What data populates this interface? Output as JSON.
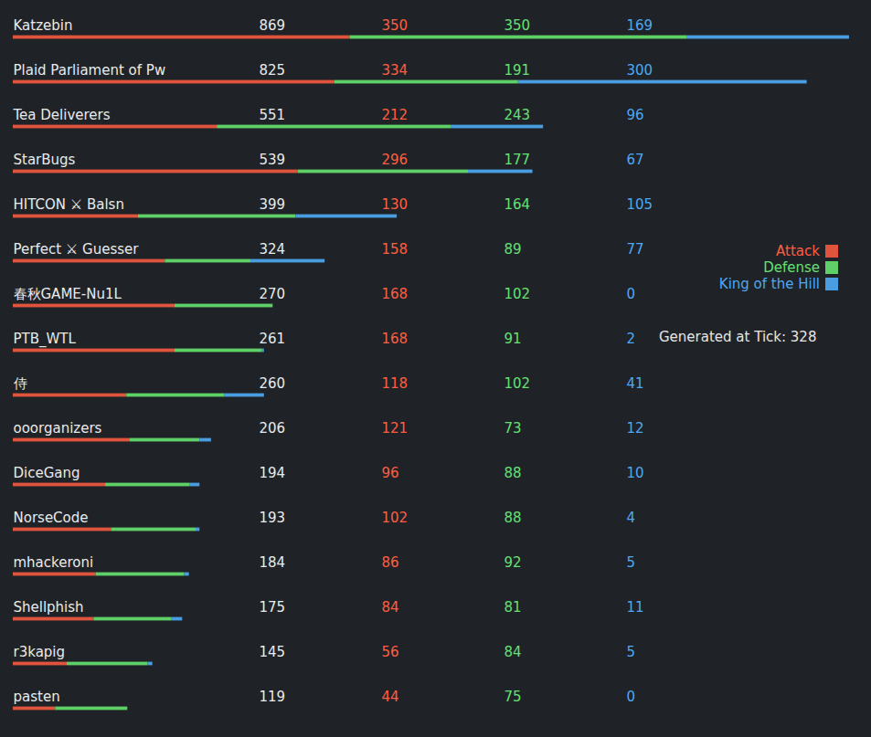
{
  "chart_data": {
    "type": "bar",
    "orientation": "horizontal",
    "stacked": true,
    "data_labels": true,
    "tick_labels": false,
    "legend": "right",
    "xlim": [
      0,
      870
    ],
    "categories": [
      "Katzebin",
      "Plaid Parliament of Pw",
      "Tea Deliverers",
      "StarBugs",
      "HITCON ⚔ Balsn",
      "Perfect ⚔ Guesser",
      "春秋GAME-Nu1L",
      "PTB_WTL",
      "侍",
      "ooorganizers",
      "DiceGang",
      "NorseCode",
      "mhackeroni",
      "Shellphish",
      "r3kapig",
      "pasten"
    ],
    "totals": [
      869,
      825,
      551,
      539,
      399,
      324,
      270,
      261,
      260,
      206,
      194,
      193,
      184,
      175,
      145,
      119
    ],
    "series": [
      {
        "name": "Attack",
        "color": "#e0533d",
        "values": [
          350,
          334,
          212,
          296,
          130,
          158,
          168,
          168,
          118,
          121,
          96,
          102,
          86,
          84,
          56,
          44
        ]
      },
      {
        "name": "Defense",
        "color": "#5fd068",
        "values": [
          350,
          191,
          243,
          177,
          164,
          89,
          102,
          91,
          102,
          73,
          88,
          88,
          92,
          81,
          84,
          75
        ]
      },
      {
        "name": "King of the Hill",
        "color": "#4a9de0",
        "values": [
          169,
          300,
          96,
          67,
          105,
          77,
          0,
          2,
          41,
          12,
          10,
          4,
          5,
          11,
          5,
          0
        ]
      }
    ],
    "annotations": [
      "Generated at Tick: 328"
    ]
  }
}
